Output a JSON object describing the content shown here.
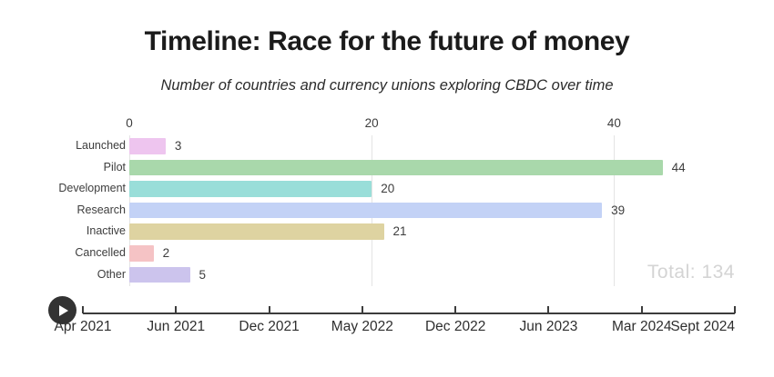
{
  "header": {
    "title": "Timeline: Race for the future of money",
    "subtitle": "Number of countries and currency unions exploring CBDC over time"
  },
  "chart_data": {
    "type": "bar",
    "orientation": "horizontal",
    "title": "Timeline: Race for the future of money",
    "subtitle": "Number of countries and currency unions exploring CBDC over time",
    "categories": [
      "Launched",
      "Pilot",
      "Development",
      "Research",
      "Inactive",
      "Cancelled",
      "Other"
    ],
    "values": [
      3,
      44,
      20,
      39,
      21,
      2,
      5
    ],
    "bar_colors": [
      "#eec5ef",
      "#a9d8ab",
      "#99ded9",
      "#c3d2f6",
      "#ded3a1",
      "#f5c3c5",
      "#ccc4ed"
    ],
    "value_axis": {
      "ticks": [
        0,
        20,
        40
      ],
      "range": [
        0,
        50
      ],
      "position": "top",
      "grid": true,
      "gridline_color": "#e4e4e4"
    },
    "total_label": "Total: 134",
    "total_value": 134,
    "legend": "none"
  },
  "timeline": {
    "dates": [
      "Apr 2021",
      "Jun 2021",
      "Dec 2021",
      "May 2022",
      "Dec 2022",
      "Jun 2023",
      "Mar 2024",
      "Sept 2024"
    ],
    "current_date": "Sept 2024",
    "play_icon": "play-icon",
    "axis_color": "#3c3c3c"
  },
  "colors": {
    "background": "#ffffff",
    "title_text": "#1b1b1b",
    "label_text": "#3d3d3d",
    "total_text": "#d4d4d4"
  }
}
